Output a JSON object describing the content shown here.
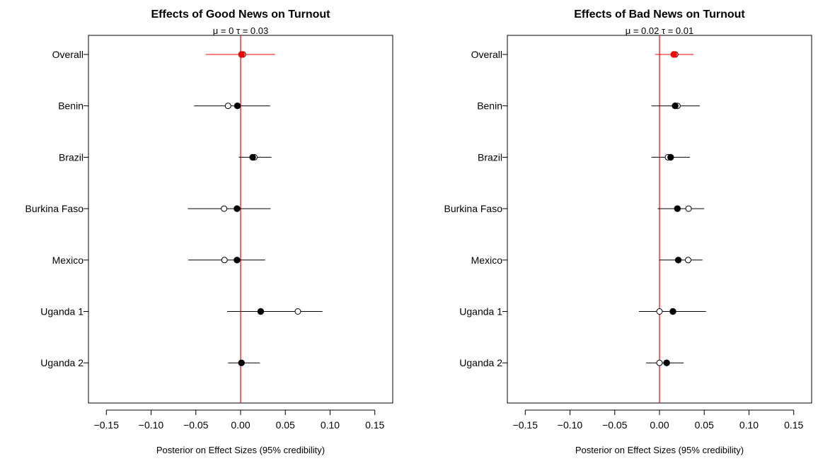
{
  "chart_data": [
    {
      "type": "forest",
      "title": "Effects of Good News on Turnout",
      "subtitle": "μ = 0   τ = 0.03",
      "xlabel": "Posterior on Effect Sizes (95% credibility)",
      "xlim": [
        -0.17,
        0.17
      ],
      "xticks": [
        -0.15,
        -0.1,
        -0.05,
        0.0,
        0.05,
        0.1,
        0.15
      ],
      "xtick_labels": [
        "−0.15",
        "−0.10",
        "−0.05",
        "0.00",
        "0.05",
        "0.10",
        "0.15"
      ],
      "reference_line_x": 0,
      "reference_line_color": "#ff0000",
      "categories": [
        "Overall",
        "Benin",
        "Brazil",
        "Burkina Faso",
        "Mexico",
        "Uganda 1",
        "Uganda 2"
      ],
      "posterior_mean": [
        0.001,
        -0.0035,
        0.0135,
        -0.004,
        -0.004,
        0.0225,
        0.001
      ],
      "ci_lower": [
        -0.039,
        -0.052,
        -0.002,
        -0.059,
        -0.0585,
        -0.015,
        -0.014
      ],
      "ci_upper": [
        0.0385,
        0.033,
        0.0345,
        0.0335,
        0.0275,
        0.0915,
        0.0215
      ],
      "observed_estimate": [
        null,
        -0.014,
        0.0155,
        -0.0185,
        -0.018,
        0.064,
        null
      ],
      "overall_color": "#ff0000"
    },
    {
      "type": "forest",
      "title": "Effects of Bad News on Turnout",
      "subtitle": "μ = 0.02   τ = 0.01",
      "xlabel": "Posterior on Effect Sizes (95% credibility)",
      "xlim": [
        -0.17,
        0.17
      ],
      "xticks": [
        -0.15,
        -0.1,
        -0.05,
        0.0,
        0.05,
        0.1,
        0.15
      ],
      "xtick_labels": [
        "−0.15",
        "−0.10",
        "−0.05",
        "0.00",
        "0.05",
        "0.10",
        "0.15"
      ],
      "reference_line_x": 0,
      "reference_line_color": "#ff0000",
      "categories": [
        "Overall",
        "Benin",
        "Brazil",
        "Burkina Faso",
        "Mexico",
        "Uganda 1",
        "Uganda 2"
      ],
      "posterior_mean": [
        0.016,
        0.0175,
        0.0125,
        0.02,
        0.021,
        0.015,
        0.008
      ],
      "ci_lower": [
        -0.005,
        -0.009,
        -0.009,
        -0.002,
        0.0,
        -0.023,
        -0.015
      ],
      "ci_upper": [
        0.038,
        0.045,
        0.034,
        0.05,
        0.048,
        0.052,
        0.027
      ],
      "observed_estimate": [
        null,
        0.02,
        0.0095,
        0.0325,
        0.032,
        0.0,
        0.0
      ],
      "overall_color": "#ff0000"
    }
  ]
}
